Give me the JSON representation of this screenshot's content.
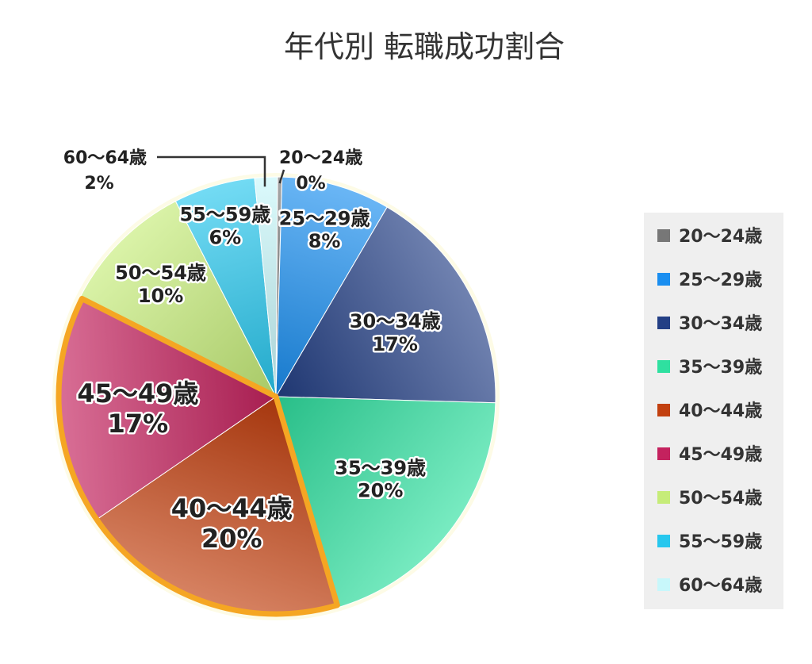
{
  "chart_data": {
    "type": "pie",
    "title": "年代別 転職成功割合",
    "categories": [
      "20〜24歳",
      "25〜29歳",
      "30〜34歳",
      "35〜39歳",
      "40〜44歳",
      "45〜49歳",
      "50〜54歳",
      "55〜59歳",
      "60〜64歳"
    ],
    "values": [
      0,
      8,
      17,
      20,
      20,
      17,
      10,
      6,
      2
    ],
    "value_labels": [
      "0%",
      "8%",
      "17%",
      "20%",
      "20%",
      "17%",
      "10%",
      "6%",
      "2%"
    ],
    "unit": "%",
    "colors": [
      "#777777",
      "#1a8ef0",
      "#233f85",
      "#2fe0a0",
      "#c2400f",
      "#c4225e",
      "#c6ec79",
      "#27c7ee",
      "#c8f7fb"
    ],
    "highlighted": [
      "40〜44歳",
      "45〜49歳"
    ],
    "highlight_color": "#f5a623",
    "legend_position": "right"
  }
}
